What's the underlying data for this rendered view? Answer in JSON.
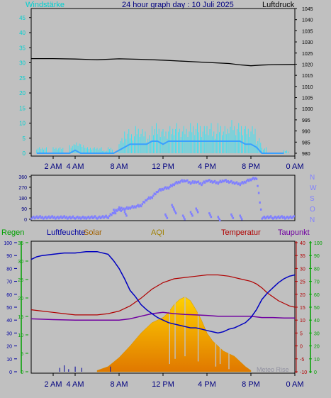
{
  "header": {
    "wind_label": "Windstärke",
    "title": "24 hour graph day : 10 Juli 2025",
    "pressure_label": "Luftdruck"
  },
  "legend": {
    "rain": "Regen",
    "humidity": "Luftfeuchte",
    "solar": "Solar",
    "aqi": "AQI",
    "temperature": "Temperatur",
    "dewpoint": "Taupunkt"
  },
  "watermark": "Meteo Rise",
  "colors": {
    "background": "#c0c0c0",
    "wind": "#00e5e5",
    "gust": "#40e0f0",
    "avg_wind": "#3aa0ff",
    "pressure": "#000000",
    "direction": "#7f7fff",
    "humidity": "#0000c0",
    "temperature": "#b00000",
    "dewpoint": "#7000a0",
    "solar_top": "#e0b000",
    "solar_bottom": "#ff8000",
    "rain_axis": "#00a000",
    "humidity_axis": "#0000a0",
    "temp_axis": "#b00000",
    "dew_axis": "#00a000",
    "aqi": "#a08000"
  },
  "chart_data": [
    {
      "type": "line",
      "title": "24 hour graph day : 10 Juli 2025",
      "x_ticks": [
        "2 AM",
        "4 AM",
        "8 AM",
        "12 PM",
        "4 PM",
        "8 PM",
        "0 AM"
      ],
      "x_tick_hours": [
        2,
        4,
        8,
        12,
        16,
        20,
        24
      ],
      "xlim": [
        0,
        24
      ],
      "left_axis": {
        "label": "Windstärke",
        "ylim": [
          0,
          48
        ],
        "ticks": [
          0,
          5,
          10,
          15,
          20,
          25,
          30,
          35,
          40,
          45
        ]
      },
      "right_axis": {
        "label": "Luftdruck",
        "ylim": [
          980,
          1045
        ],
        "ticks": [
          980,
          985,
          990,
          995,
          1000,
          1005,
          1010,
          1015,
          1020,
          1025,
          1030,
          1035,
          1040,
          1045
        ]
      },
      "series": [
        {
          "name": "Luftdruck",
          "axis": "right",
          "x": [
            0,
            2,
            4,
            6,
            8,
            10,
            12,
            14,
            16,
            18,
            19,
            20,
            21,
            22,
            24
          ],
          "y": [
            1022.5,
            1022.5,
            1022.3,
            1022.0,
            1022.4,
            1022.2,
            1021.8,
            1021.3,
            1020.8,
            1020.3,
            1019.7,
            1019.3,
            1019.6,
            1019.8,
            1019.9
          ]
        }
      ],
      "wind": {
        "x": [
          0.5,
          1.0,
          1.5,
          2.0,
          2.5,
          3.0,
          3.5,
          4.0,
          4.5,
          5.0,
          5.5,
          6.0,
          6.5,
          7.0,
          7.5,
          8.0,
          8.5,
          9.0,
          9.5,
          10.0,
          10.5,
          11.0,
          11.5,
          12.0,
          12.5,
          13.0,
          13.5,
          14.0,
          14.5,
          15.0,
          15.5,
          16.0,
          16.5,
          17.0,
          17.5,
          18.0,
          18.5,
          19.0,
          19.5,
          20.0,
          20.5,
          21.0,
          22.0,
          23.0
        ],
        "gust": [
          2,
          2,
          0,
          2,
          2,
          0,
          3,
          4,
          3,
          2,
          2,
          2,
          1,
          2,
          0,
          5,
          8,
          7,
          9,
          8,
          6,
          10,
          9,
          8,
          9,
          10,
          9,
          9,
          10,
          10,
          9,
          10,
          8,
          10,
          9,
          11,
          10,
          10,
          9,
          9,
          5,
          2,
          0,
          1
        ],
        "avg": [
          0,
          0,
          0,
          0,
          0,
          0,
          0,
          1,
          0,
          0,
          0,
          0,
          0,
          0,
          0,
          1,
          2,
          3,
          3,
          3,
          3,
          4,
          4,
          3,
          4,
          4,
          4,
          4,
          4,
          4,
          4,
          4,
          4,
          4,
          4,
          4,
          4,
          4,
          3,
          3,
          2,
          0,
          0,
          0
        ]
      }
    },
    {
      "type": "scatter",
      "title": "",
      "x_ticks": [],
      "ylabels": [
        "N",
        "W",
        "S",
        "O",
        "N"
      ],
      "left_ticks": [
        0,
        90,
        180,
        270,
        360
      ],
      "ylim": [
        0,
        360
      ],
      "direction": {
        "x": [
          0,
          4,
          4.5,
          5,
          6,
          7,
          7.5,
          8,
          8.5,
          9,
          9.5,
          10,
          10.5,
          11,
          11.5,
          12,
          12.5,
          13,
          13.5,
          14,
          14.5,
          15,
          15.5,
          16,
          16.5,
          17,
          17.5,
          18,
          18.5,
          19,
          19.5,
          20,
          20.5,
          21,
          22,
          24
        ],
        "y": [
          15,
          15,
          15,
          15,
          15,
          20,
          60,
          90,
          90,
          100,
          110,
          120,
          170,
          190,
          240,
          260,
          270,
          300,
          320,
          330,
          310,
          320,
          300,
          330,
          320,
          310,
          330,
          320,
          310,
          300,
          320,
          340,
          350,
          15,
          15,
          15
        ]
      },
      "scattered_direction": {
        "x": [
          7.5,
          8.0,
          8.5,
          12.2,
          13.0,
          13.8,
          14.5,
          16.2,
          17.0,
          18.2,
          19.0,
          12.8,
          15.0
        ],
        "y": [
          80,
          100,
          60,
          40,
          80,
          30,
          60,
          50,
          20,
          40,
          30,
          120,
          90
        ]
      }
    },
    {
      "type": "line",
      "title": "",
      "x_ticks": [
        "2 AM",
        "4 AM",
        "8 AM",
        "12 PM",
        "4 PM",
        "8 PM",
        "0 AM"
      ],
      "x_tick_hours": [
        2,
        4,
        8,
        12,
        16,
        20,
        24
      ],
      "xlim": [
        0,
        24
      ],
      "axes": {
        "rain": {
          "label": "Regen",
          "ticks": [
            0,
            10,
            20,
            30,
            40,
            50,
            60,
            70,
            80,
            90,
            100
          ],
          "ylim": [
            0,
            100
          ]
        },
        "humidity": {
          "label": "Luftfeuchte",
          "ticks": [
            0,
            5,
            10,
            15,
            20,
            25,
            30,
            35
          ],
          "ylim": [
            0,
            35
          ]
        },
        "temperature": {
          "label": "Temperatur",
          "ticks": [
            -10,
            -5,
            0,
            5,
            10,
            15,
            20,
            25,
            30,
            35,
            40
          ],
          "ylim": [
            -10,
            40
          ]
        },
        "dewpoint": {
          "label": "Taupunkt",
          "ticks": [
            0,
            10,
            20,
            30,
            40,
            50,
            60,
            70,
            80,
            90,
            100
          ],
          "ylim": [
            0,
            100
          ]
        }
      },
      "series": [
        {
          "name": "Luftfeuchte",
          "axis": "rain",
          "x": [
            0,
            0.5,
            1,
            2,
            3,
            4,
            5,
            6,
            7,
            7.5,
            8,
            8.5,
            9,
            9.5,
            10,
            10.5,
            11,
            11.5,
            12,
            12.5,
            13,
            13.5,
            14,
            14.5,
            15,
            15.5,
            16,
            16.5,
            17,
            17.5,
            18,
            18.5,
            19,
            19.5,
            20,
            20.5,
            21,
            21.5,
            22,
            22.5,
            23,
            23.5,
            24
          ],
          "y": [
            87,
            89,
            90,
            91,
            92,
            92,
            93,
            93,
            91,
            86,
            80,
            72,
            63,
            58,
            52,
            48,
            45,
            42,
            40,
            38,
            37,
            36,
            35,
            34,
            34,
            33,
            32,
            31,
            30,
            31,
            33,
            34,
            36,
            38,
            42,
            48,
            56,
            61,
            65,
            69,
            72,
            74,
            75
          ]
        },
        {
          "name": "Temperatur",
          "axis": "temperature",
          "x": [
            0,
            1,
            2,
            3,
            4,
            5,
            6,
            7,
            8,
            9,
            10,
            11,
            12,
            13,
            14,
            15,
            16,
            17,
            18,
            19,
            20,
            20.5,
            21,
            21.5,
            22,
            22.5,
            23,
            23.5,
            24
          ],
          "y": [
            14,
            13.5,
            13,
            12.5,
            12,
            12,
            12,
            12.5,
            13.5,
            15.5,
            18.5,
            22,
            24.5,
            26,
            26.5,
            27,
            27.5,
            27.5,
            27,
            26,
            25,
            24,
            22.5,
            20.5,
            19,
            17.5,
            16.5,
            15.5,
            15
          ]
        },
        {
          "name": "Taupunkt",
          "axis": "temperature",
          "x": [
            0,
            2,
            4,
            6,
            8,
            9,
            10,
            11,
            12,
            13,
            14,
            15,
            16,
            17,
            18,
            19,
            20,
            21,
            22,
            23,
            24
          ],
          "y": [
            10.5,
            10.2,
            10,
            10,
            10,
            10.5,
            11.5,
            12.5,
            13,
            12.5,
            12.2,
            12,
            11.8,
            11.5,
            11.5,
            11.5,
            11.5,
            11,
            11,
            10.8,
            10.8
          ]
        }
      ],
      "solar": {
        "axis": "rain",
        "x": [
          6,
          7,
          8,
          9,
          10,
          11,
          12,
          12.5,
          13,
          13.5,
          14,
          14.5,
          15,
          15.5,
          16,
          16.5,
          17,
          17.5,
          18,
          18.5,
          19,
          19.5,
          20
        ],
        "y": [
          1,
          4,
          11,
          20,
          30,
          38,
          42,
          46,
          52,
          56,
          58,
          55,
          48,
          40,
          30,
          24,
          20,
          16,
          14,
          12,
          8,
          4,
          1
        ]
      },
      "rain_bars": {
        "x": [
          2.6,
          3.0,
          3.4,
          4.0,
          4.6,
          7.2
        ],
        "y": [
          3,
          5,
          2,
          4,
          3,
          4
        ]
      }
    }
  ]
}
